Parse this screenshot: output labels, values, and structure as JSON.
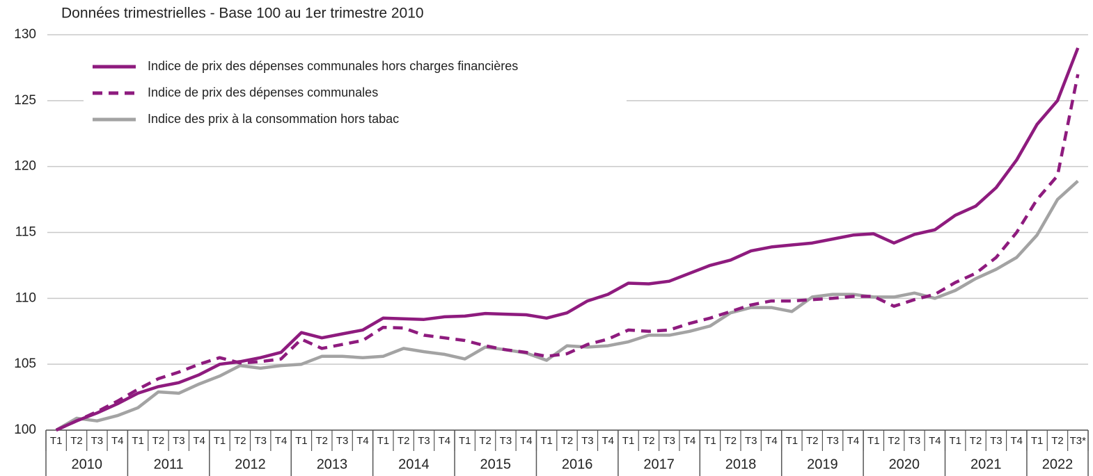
{
  "chart_data": {
    "type": "line",
    "title": "Données trimestrielles - Base 100 au 1er trimestre 2010",
    "categories": [
      "T1",
      "T2",
      "T3",
      "T4",
      "T1",
      "T2",
      "T3",
      "T4",
      "T1",
      "T2",
      "T3",
      "T4",
      "T1",
      "T2",
      "T3",
      "T4",
      "T1",
      "T2",
      "T3",
      "T4",
      "T1",
      "T2",
      "T3",
      "T4",
      "T1",
      "T2",
      "T3",
      "T4",
      "T1",
      "T2",
      "T3",
      "T4",
      "T1",
      "T2",
      "T3",
      "T4",
      "T1",
      "T2",
      "T3",
      "T4",
      "T1",
      "T2",
      "T3",
      "T4",
      "T1",
      "T2",
      "T3",
      "T4",
      "T1",
      "T2",
      "T3*"
    ],
    "groups": [
      "2010",
      "2011",
      "2012",
      "2013",
      "2014",
      "2015",
      "2016",
      "2017",
      "2018",
      "2019",
      "2020",
      "2021",
      "2022"
    ],
    "series": [
      {
        "name": "Indice de prix des dépenses communales hors charges financières",
        "color": "#8e1b7e",
        "dashed": false,
        "values": [
          100,
          100.7,
          101.3,
          102.0,
          102.8,
          103.3,
          103.6,
          104.2,
          105.0,
          105.2,
          105.5,
          105.9,
          107.4,
          107.0,
          107.3,
          107.6,
          108.5,
          108.45,
          108.4,
          108.6,
          108.65,
          108.85,
          108.8,
          108.75,
          108.5,
          108.9,
          109.8,
          110.3,
          111.15,
          111.1,
          111.3,
          111.9,
          112.5,
          112.9,
          113.6,
          113.9,
          114.05,
          114.2,
          114.5,
          114.8,
          114.9,
          114.2,
          114.85,
          115.2,
          116.3,
          117.0,
          118.4,
          120.5,
          123.2,
          125.0,
          129.0
        ]
      },
      {
        "name": "Indice de prix des dépenses communales",
        "color": "#8e1b7e",
        "dashed": true,
        "values": [
          100,
          100.7,
          101.4,
          102.2,
          103.1,
          103.9,
          104.4,
          105.0,
          105.5,
          105.1,
          105.2,
          105.4,
          106.9,
          106.2,
          106.5,
          106.8,
          107.8,
          107.75,
          107.2,
          107.0,
          106.8,
          106.4,
          106.1,
          105.9,
          105.6,
          105.8,
          106.5,
          106.9,
          107.6,
          107.5,
          107.6,
          108.1,
          108.5,
          109.0,
          109.5,
          109.8,
          109.8,
          109.9,
          110.0,
          110.15,
          110.15,
          109.4,
          109.9,
          110.3,
          111.2,
          111.9,
          113.1,
          115.0,
          117.5,
          119.3,
          127.0
        ]
      },
      {
        "name": "Indice des prix à la consommation hors tabac",
        "color": "#a3a3a3",
        "dashed": false,
        "values": [
          100,
          100.9,
          100.7,
          101.1,
          101.7,
          102.9,
          102.8,
          103.5,
          104.1,
          104.9,
          104.7,
          104.9,
          105.0,
          105.6,
          105.6,
          105.5,
          105.6,
          106.2,
          105.95,
          105.75,
          105.4,
          106.3,
          106.1,
          105.85,
          105.3,
          106.4,
          106.3,
          106.4,
          106.7,
          107.2,
          107.2,
          107.5,
          107.9,
          108.9,
          109.3,
          109.3,
          109.0,
          110.1,
          110.3,
          110.3,
          110.1,
          110.1,
          110.4,
          110.0,
          110.6,
          111.5,
          112.2,
          113.1,
          114.8,
          117.5,
          118.9
        ]
      }
    ],
    "ylim": [
      100,
      130
    ],
    "yticks": [
      100,
      105,
      110,
      115,
      120,
      125,
      130
    ],
    "grid": true
  }
}
